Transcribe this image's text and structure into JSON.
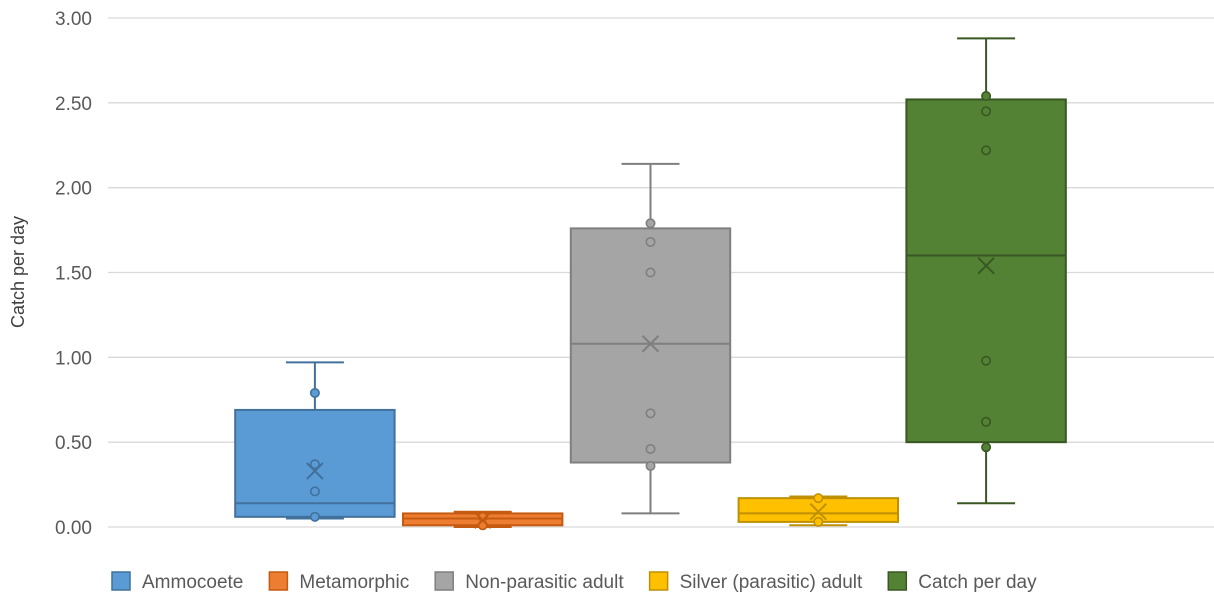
{
  "chart_data": {
    "type": "box",
    "ylabel": "Catch per day",
    "ylim": [
      0,
      3
    ],
    "yticks": [
      "0.00",
      "0.50",
      "1.00",
      "1.50",
      "2.00",
      "2.50",
      "3.00"
    ],
    "ytick_values": [
      0,
      0.5,
      1,
      1.5,
      2,
      2.5,
      3
    ],
    "grid": true,
    "legend_position": "bottom",
    "series": [
      {
        "name": "Ammocoete",
        "color": "#5B9BD5",
        "stroke": "#41719C",
        "min": 0.05,
        "q1": 0.06,
        "median": 0.14,
        "q3": 0.69,
        "max": 0.97,
        "mean": 0.33,
        "points": [
          0.06,
          0.21,
          0.37,
          0.79
        ]
      },
      {
        "name": "Metamorphic",
        "color": "#ED7D31",
        "stroke": "#C55A11",
        "min": 0.0,
        "q1": 0.01,
        "median": 0.05,
        "q3": 0.08,
        "max": 0.09,
        "mean": 0.04,
        "points": [
          0.01,
          0.06
        ]
      },
      {
        "name": "Non-parasitic adult",
        "color": "#A5A5A5",
        "stroke": "#7F7F7F",
        "min": 0.08,
        "q1": 0.38,
        "median": 1.08,
        "q3": 1.76,
        "max": 2.14,
        "mean": 1.08,
        "points": [
          0.36,
          0.46,
          0.67,
          1.5,
          1.68,
          1.79
        ]
      },
      {
        "name": "Silver (parasitic) adult",
        "color": "#FFC000",
        "stroke": "#BF9000",
        "min": 0.01,
        "q1": 0.03,
        "median": 0.08,
        "q3": 0.17,
        "max": 0.18,
        "mean": 0.09,
        "points": [
          0.03,
          0.17
        ]
      },
      {
        "name": "Catch per day",
        "color": "#548235",
        "stroke": "#385723",
        "min": 0.14,
        "q1": 0.5,
        "median": 1.6,
        "q3": 2.52,
        "max": 2.88,
        "mean": 1.54,
        "points": [
          0.47,
          0.62,
          0.98,
          2.22,
          2.45,
          2.54
        ]
      }
    ]
  }
}
